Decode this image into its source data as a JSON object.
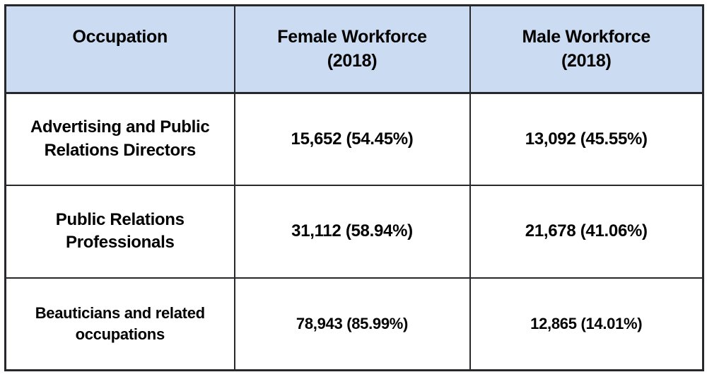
{
  "table": {
    "header": {
      "occupation": [
        "Occupation"
      ],
      "female": [
        "Female Workforce",
        "(2018)"
      ],
      "male": [
        "Male Workforce",
        "(2018)"
      ]
    },
    "rows": [
      {
        "occupation": [
          "Advertising and Public",
          "Relations Directors"
        ],
        "female": "15,652 (54.45%)",
        "male": "13,092 (45.55%)"
      },
      {
        "occupation": [
          "Public Relations",
          "Professionals"
        ],
        "female": "31,112 (58.94%)",
        "male": "21,678 (41.06%)"
      },
      {
        "occupation": [
          "Beauticians and related",
          "occupations"
        ],
        "female": "78,943 (85.99%)",
        "male": "12,865 (14.01%)"
      }
    ],
    "colors": {
      "header_bg": "#cbdbf2",
      "border": "#26282c",
      "text": "#000000",
      "page_bg": "#ffffff"
    }
  },
  "chart_data": {
    "type": "table",
    "title": "",
    "columns": [
      "Occupation",
      "Female Workforce (2018)",
      "Male Workforce (2018)"
    ],
    "rows": [
      [
        "Advertising and Public Relations Directors",
        "15,652 (54.45%)",
        "13,092 (45.55%)"
      ],
      [
        "Public Relations Professionals",
        "31,112 (58.94%)",
        "21,678 (41.06%)"
      ],
      [
        "Beauticians and related occupations",
        "78,943 (85.99%)",
        "12,865 (14.01%)"
      ]
    ],
    "numeric": {
      "categories": [
        "Advertising and Public Relations Directors",
        "Public Relations Professionals",
        "Beauticians and related occupations"
      ],
      "series": [
        {
          "name": "Female Workforce (2018) count",
          "values": [
            15652,
            31112,
            78943
          ]
        },
        {
          "name": "Female Workforce (2018) percent",
          "values": [
            54.45,
            58.94,
            85.99
          ]
        },
        {
          "name": "Male Workforce (2018) count",
          "values": [
            13092,
            21678,
            12865
          ]
        },
        {
          "name": "Male Workforce (2018) percent",
          "values": [
            45.55,
            41.06,
            14.01
          ]
        }
      ],
      "year": 2018
    }
  }
}
